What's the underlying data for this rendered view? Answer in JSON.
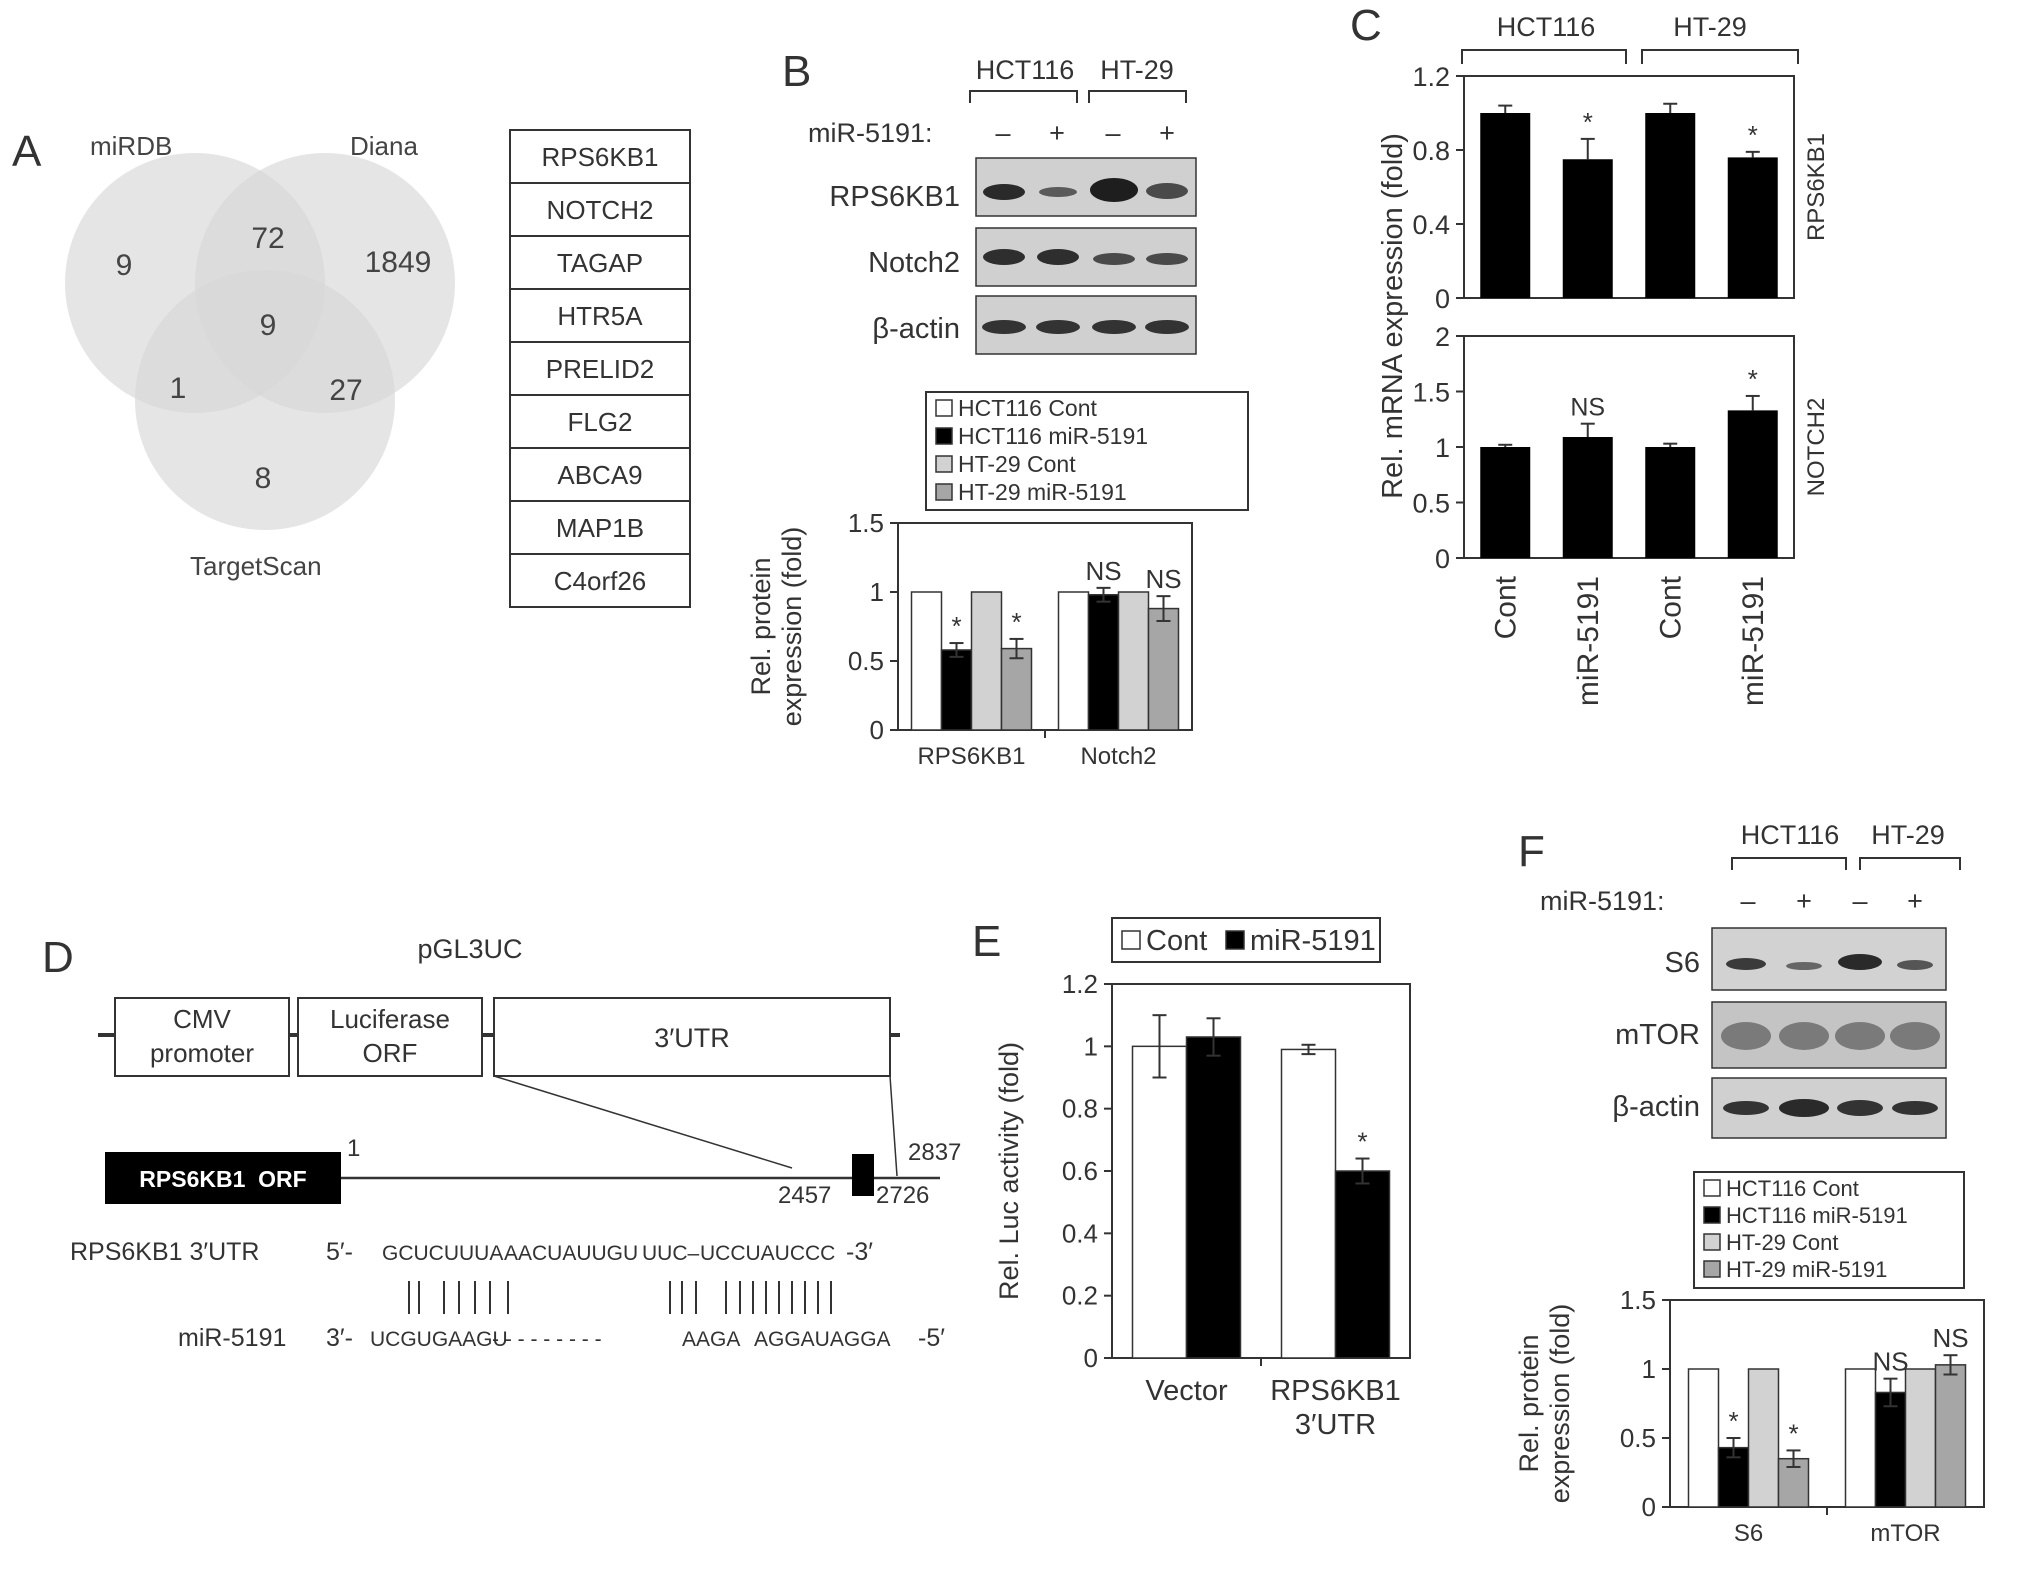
{
  "colors": {
    "hct_cont": "#ffffff",
    "hct_mir": "#000000",
    "ht_cont": "#d2d2d2",
    "ht_mir": "#a6a6a6",
    "axis": "#333333",
    "venn_circle": "#dedede",
    "blot_bg": "#cfcfcf",
    "band": "#2a2a2a"
  },
  "panels": {
    "A": {
      "letter": "A",
      "venn": {
        "set_labels": [
          "miRDB",
          "Diana",
          "TargetScan"
        ],
        "regions": {
          "mirdb_only": "9",
          "diana_only": "1849",
          "targetscan_only": "8",
          "mirdb_diana": "72",
          "mirdb_targetscan": "1",
          "diana_targetscan": "27",
          "all_three": "9"
        }
      },
      "gene_list": [
        "RPS6KB1",
        "NOTCH2",
        "TAGAP",
        "HTR5A",
        "PRELID2",
        "FLG2",
        "ABCA9",
        "MAP1B",
        "C4orf26"
      ]
    },
    "B": {
      "letter": "B",
      "cell_lines": [
        "HCT116",
        "HT-29"
      ],
      "treatment_label": "miR-5191:",
      "lane_marks": [
        "–",
        "+",
        "–",
        "+"
      ],
      "blot_rows": [
        "RPS6KB1",
        "Notch2",
        "β-actin"
      ]
    },
    "C": {
      "letter": "C",
      "cell_lines": [
        "HCT116",
        "HT-29"
      ]
    },
    "D": {
      "letter": "D",
      "vector_name": "pGL3UC",
      "boxes": [
        {
          "line1": "CMV",
          "line2": "promoter"
        },
        {
          "line1": "Luciferase",
          "line2": "ORF"
        },
        {
          "line1": "3′UTR",
          "line2": ""
        }
      ],
      "orf_label": "RPS6KB1  ORF",
      "positions": {
        "start": "1",
        "site_start": "2457",
        "site_end": "2726",
        "end": "2837"
      },
      "alignment": {
        "utr_label": "RPS6KB1 3′UTR",
        "utr_prime5": "5′-",
        "utr_seq": [
          "GCUCUUUA",
          "AACUAUUGU",
          "UUC–",
          "UCCUAUCCC"
        ],
        "utr_prime3": "-3′",
        "pairing": "|| |||| |  ||| ||||||||| ",
        "mir_label": "miR-5191",
        "mir_prime3": "3′-",
        "mir_seq": [
          "UCGUGAAGU",
          "- - - - - - - - -",
          "AAGA",
          "AGGAUAGGA"
        ],
        "mir_prime5": "-5′"
      }
    },
    "E": {
      "letter": "E"
    },
    "F": {
      "letter": "F",
      "cell_lines": [
        "HCT116",
        "HT-29"
      ],
      "treatment_label": "miR-5191:",
      "lane_marks": [
        "–",
        "+",
        "–",
        "+"
      ],
      "blot_rows": [
        "S6",
        "mTOR",
        "β-actin"
      ]
    }
  },
  "chart_data": [
    {
      "id": "B",
      "type": "bar",
      "categories": [
        "RPS6KB1",
        "Notch2"
      ],
      "series": [
        {
          "name": "HCT116 Cont",
          "values": [
            1.0,
            1.0
          ],
          "errors": [
            0,
            0
          ],
          "color_key": "hct_cont"
        },
        {
          "name": "HCT116 miR-5191",
          "values": [
            0.58,
            0.98
          ],
          "errors": [
            0.05,
            0.05
          ],
          "color_key": "hct_mir"
        },
        {
          "name": "HT-29 Cont",
          "values": [
            1.0,
            1.0
          ],
          "errors": [
            0,
            0
          ],
          "color_key": "ht_cont"
        },
        {
          "name": "HT-29 miR-5191",
          "values": [
            0.59,
            0.88
          ],
          "errors": [
            0.07,
            0.09
          ],
          "color_key": "ht_mir"
        }
      ],
      "annotations": [
        [
          "",
          "*",
          "",
          "*"
        ],
        [
          "",
          "NS",
          "",
          "NS"
        ]
      ],
      "ylabel": "Rel. protein\nexpression (fold)",
      "ylim": [
        0,
        1.5
      ],
      "yticks": [
        "0",
        "0.5",
        "1",
        "1.5"
      ],
      "legend_position": "top"
    },
    {
      "id": "C",
      "type": "bar",
      "categories": [
        "Cont",
        "miR-5191",
        "Cont",
        "miR-5191"
      ],
      "ylabel": "Rel. mRNA expression (fold)",
      "subplots": [
        {
          "gene": "RPS6KB1",
          "values": [
            1.0,
            0.75,
            1.0,
            0.76
          ],
          "errors": [
            0.04,
            0.11,
            0.05,
            0.03
          ],
          "annotations": [
            "",
            "*",
            "",
            "*"
          ],
          "ylim": [
            0,
            1.2
          ],
          "yticks": [
            "0",
            "0.4",
            "0.8",
            "1.2"
          ]
        },
        {
          "gene": "NOTCH2",
          "values": [
            1.0,
            1.09,
            1.0,
            1.33
          ],
          "errors": [
            0.02,
            0.12,
            0.03,
            0.13
          ],
          "annotations": [
            "",
            "NS",
            "",
            "*"
          ],
          "ylim": [
            0,
            2
          ],
          "yticks": [
            "0",
            "0.5",
            "1",
            "1.5",
            "2"
          ]
        }
      ]
    },
    {
      "id": "E",
      "type": "bar",
      "categories": [
        "Vector",
        "RPS6KB1\n3′UTR"
      ],
      "series": [
        {
          "name": "Cont",
          "values": [
            1.0,
            0.99
          ],
          "errors": [
            0.1,
            0.015
          ],
          "color_key": "hct_cont"
        },
        {
          "name": "miR-5191",
          "values": [
            1.03,
            0.6
          ],
          "errors": [
            0.06,
            0.04
          ],
          "color_key": "hct_mir"
        }
      ],
      "annotations": [
        [
          "",
          ""
        ],
        [
          "",
          "*"
        ]
      ],
      "ylabel": "Rel. Luc activity (fold)",
      "ylim": [
        0,
        1.2
      ],
      "yticks": [
        "0",
        "0.2",
        "0.4",
        "0.6",
        "0.8",
        "1",
        "1.2"
      ],
      "legend_position": "top"
    },
    {
      "id": "F",
      "type": "bar",
      "categories": [
        "S6",
        "mTOR"
      ],
      "series": [
        {
          "name": "HCT116 Cont",
          "values": [
            1.0,
            1.0
          ],
          "errors": [
            0,
            0
          ],
          "color_key": "hct_cont"
        },
        {
          "name": "HCT116 miR-5191",
          "values": [
            0.43,
            0.83
          ],
          "errors": [
            0.07,
            0.1
          ],
          "color_key": "hct_mir"
        },
        {
          "name": "HT-29 Cont",
          "values": [
            1.0,
            1.0
          ],
          "errors": [
            0,
            0
          ],
          "color_key": "ht_cont"
        },
        {
          "name": "HT-29 miR-5191",
          "values": [
            0.35,
            1.03
          ],
          "errors": [
            0.06,
            0.07
          ],
          "color_key": "ht_mir"
        }
      ],
      "annotations": [
        [
          "",
          "*",
          "",
          "*"
        ],
        [
          "",
          "NS",
          "",
          "NS"
        ]
      ],
      "ylabel": "Rel. protein\nexpression (fold)",
      "ylim": [
        0,
        1.5
      ],
      "yticks": [
        "0",
        "0.5",
        "1",
        "1.5"
      ],
      "legend_position": "top"
    }
  ]
}
